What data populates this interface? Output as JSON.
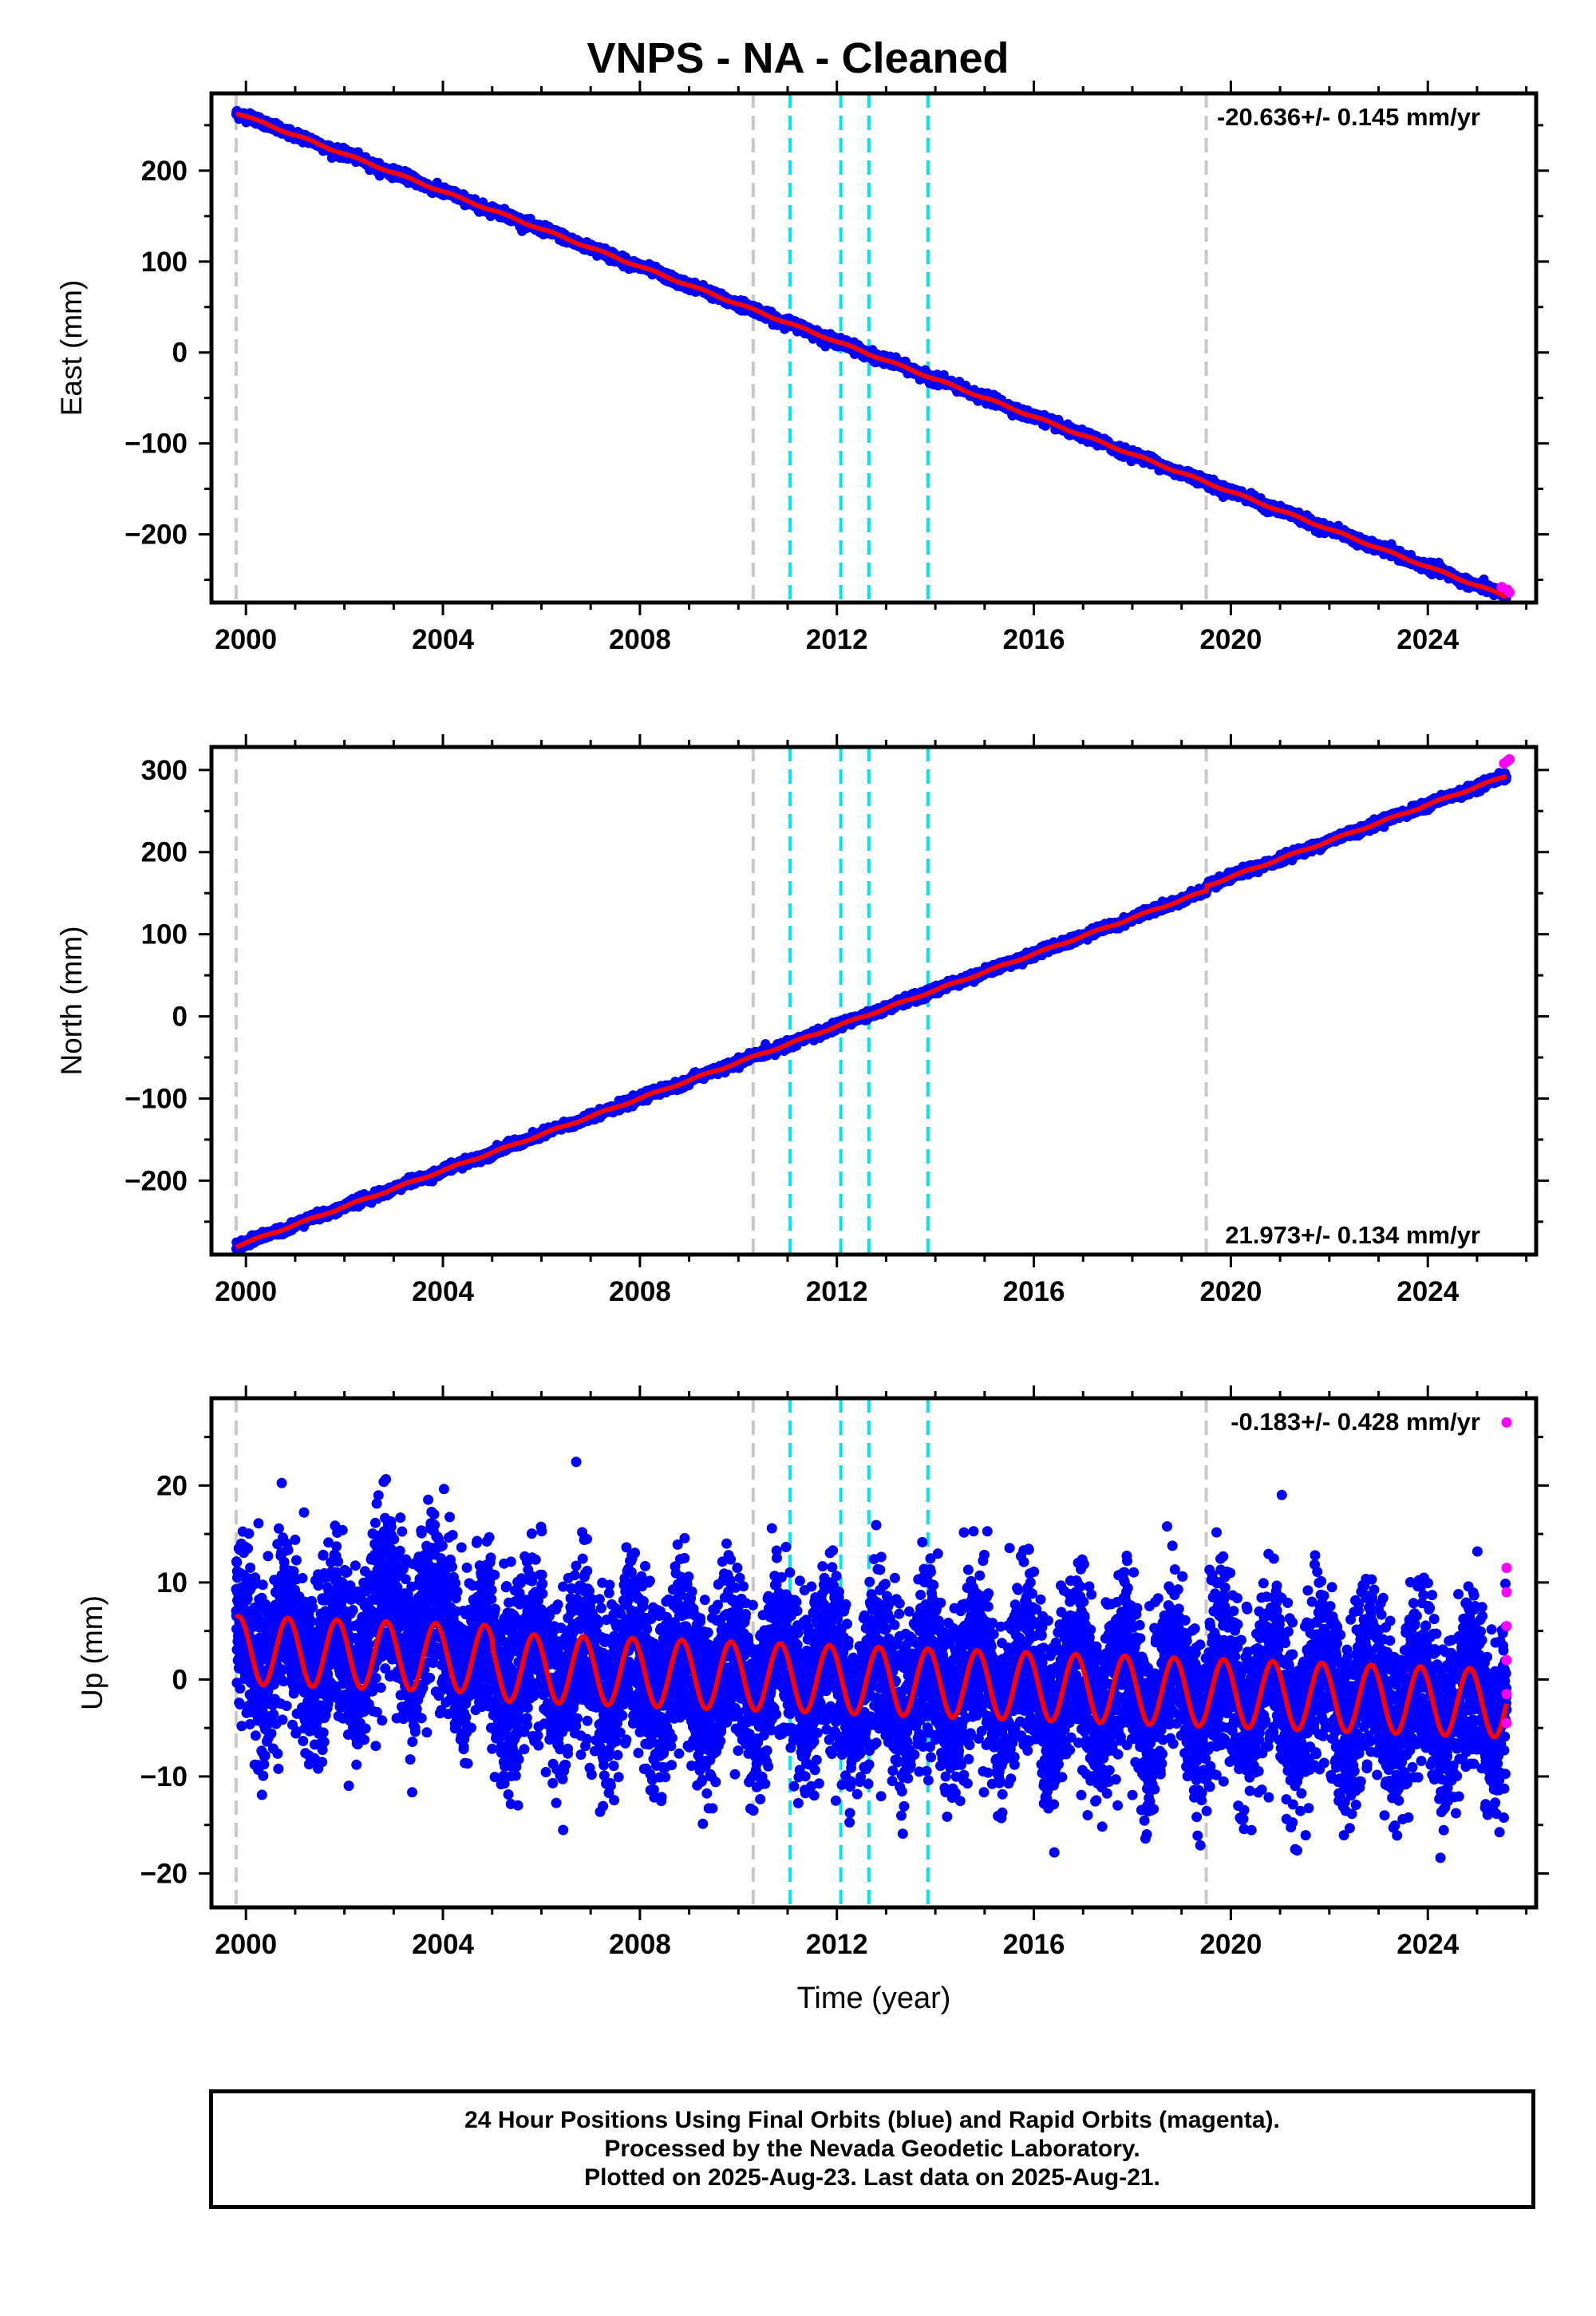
{
  "title": "VNPS  - NA - Cleaned",
  "colors": {
    "final_orbits": "#0000ff",
    "rapid_orbits": "#ff00ff",
    "model": "#ff0000",
    "equipment_change": "#c8c8c8",
    "earthquake": "#00e5ee"
  },
  "chart_data": [
    {
      "type": "scatter",
      "ylabel": "East (mm)",
      "xlabel": "",
      "xlim": [
        1999.3,
        2026.2
      ],
      "ylim": [
        -275,
        285
      ],
      "xticks": [
        2000,
        2004,
        2008,
        2012,
        2016,
        2020,
        2024
      ],
      "yticks": [
        -200,
        -100,
        0,
        100,
        200
      ],
      "rate_label": "-20.636+/- 0.145 mm/yr",
      "model": {
        "start": 1999.8,
        "end": 2025.6,
        "value_at_2012": 12.0,
        "rate_mm_per_yr": -20.636,
        "seasonal_amplitude_mm": 1.0,
        "scatter_mm": 2.5
      },
      "model_points": [
        [
          1999.8,
          270
        ],
        [
          2004,
          183
        ],
        [
          2008,
          95
        ],
        [
          2012,
          12
        ],
        [
          2016,
          -70
        ],
        [
          2020,
          -149
        ],
        [
          2024,
          -232
        ],
        [
          2025.6,
          -262
        ]
      ],
      "rapid_points": [
        [
          2025.5,
          -258
        ],
        [
          2025.62,
          -261
        ],
        [
          2025.66,
          -264
        ]
      ]
    },
    {
      "type": "scatter",
      "ylabel": "North (mm)",
      "xlabel": "",
      "xlim": [
        1999.3,
        2026.2
      ],
      "ylim": [
        -290,
        328
      ],
      "xticks": [
        2000,
        2004,
        2008,
        2012,
        2016,
        2020,
        2024
      ],
      "yticks": [
        -200,
        -100,
        0,
        100,
        200,
        300
      ],
      "rate_label": "21.973+/- 0.134 mm/yr",
      "model": {
        "start": 1999.8,
        "end": 2025.6,
        "value_at_2012": -12.0,
        "rate_mm_per_yr": 21.973,
        "seasonal_amplitude_mm": 1.0,
        "scatter_mm": 2.5,
        "step_at": 2019.5,
        "step_mm": 6
      },
      "model_points": [
        [
          1999.8,
          -278
        ],
        [
          2004,
          -185
        ],
        [
          2008,
          -98
        ],
        [
          2012,
          -12
        ],
        [
          2016,
          80
        ],
        [
          2019.5,
          160
        ],
        [
          2020,
          182
        ],
        [
          2024,
          270
        ],
        [
          2025.6,
          310
        ]
      ],
      "rapid_points": [
        [
          2025.55,
          308
        ],
        [
          2025.62,
          311
        ],
        [
          2025.66,
          313
        ]
      ]
    },
    {
      "type": "scatter",
      "ylabel": "Up (mm)",
      "xlabel": "Time (year)",
      "xlim": [
        1999.3,
        2026.2
      ],
      "ylim": [
        -23.5,
        29
      ],
      "xticks": [
        2000,
        2004,
        2008,
        2012,
        2016,
        2020,
        2024
      ],
      "yticks": [
        -20,
        -10,
        0,
        10,
        20
      ],
      "rate_label": "-0.183+/- 0.428 mm/yr",
      "model": {
        "start": 1999.8,
        "end": 2025.6,
        "value_at_2012": 0.0,
        "rate_mm_per_yr": -0.183,
        "seasonal_amplitude_mm": 3.5,
        "scatter_mm": 4.5
      },
      "model_points": [
        [
          1999.8,
          5.5
        ],
        [
          2000.25,
          -1.5
        ],
        [
          2000.75,
          5
        ],
        [
          2012,
          0
        ],
        [
          2019.45,
          -5.5
        ],
        [
          2019.5,
          -8
        ],
        [
          2019.55,
          4.5
        ],
        [
          2025.6,
          3
        ]
      ],
      "rapid_points": [
        [
          2025.6,
          26.5
        ],
        [
          2025.6,
          11.5
        ],
        [
          2025.6,
          9
        ],
        [
          2025.6,
          5.5
        ],
        [
          2025.6,
          2
        ],
        [
          2025.6,
          -1.5
        ],
        [
          2025.6,
          -4.5
        ]
      ]
    }
  ],
  "equipment_change_years": [
    1999.8,
    2010.3,
    2019.5
  ],
  "earthquake_years": [
    2011.05,
    2012.08,
    2012.65,
    2013.85
  ],
  "footer": {
    "line1": "24 Hour Positions Using Final Orbits (blue) and Rapid Orbits (magenta).",
    "line2": "Processed by the Nevada Geodetic Laboratory.",
    "line3": "Plotted on 2025-Aug-23. Last data on 2025-Aug-21."
  }
}
